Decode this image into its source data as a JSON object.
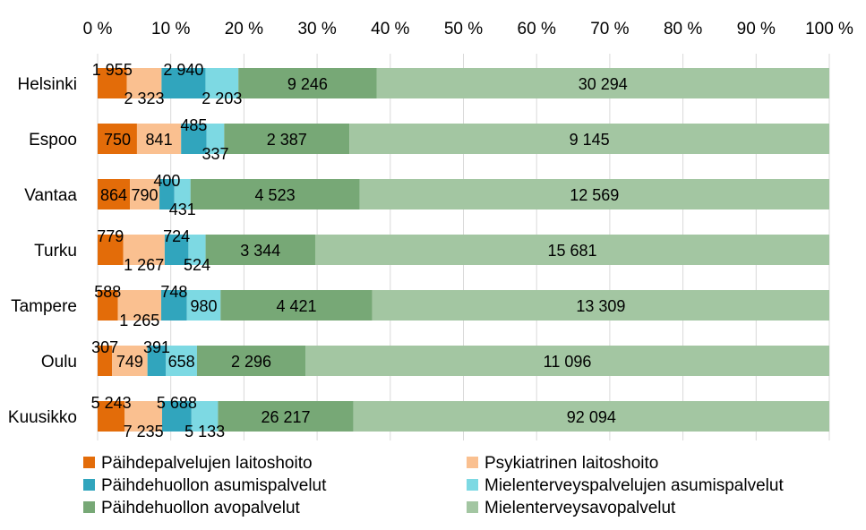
{
  "chart_data": {
    "type": "bar",
    "orientation": "horizontal",
    "stacked": "percent",
    "xlim": [
      0,
      100
    ],
    "x_ticks": [
      "0 %",
      "10 %",
      "20 %",
      "30 %",
      "40 %",
      "50 %",
      "60 %",
      "70 %",
      "80 %",
      "90 %",
      "100 %"
    ],
    "grid": true,
    "legend_position": "bottom",
    "categories": [
      "Helsinki",
      "Espoo",
      "Vantaa",
      "Turku",
      "Tampere",
      "Oulu",
      "Kuusikko"
    ],
    "series": [
      {
        "name": "Päihdepalvelujen laitoshoito",
        "color": "#E36C09",
        "values": [
          1955,
          750,
          864,
          779,
          588,
          307,
          5243
        ],
        "labels": [
          "1 955",
          "750",
          "864",
          "779",
          "588",
          "307",
          "5 243"
        ]
      },
      {
        "name": "Psykiatrinen laitoshoito",
        "color": "#FAC090",
        "values": [
          2323,
          841,
          790,
          1267,
          1265,
          749,
          7235
        ],
        "labels": [
          "2 323",
          "841",
          "790",
          "1 267",
          "1 265",
          "749",
          "7 235"
        ]
      },
      {
        "name": "Päihdehuollon asumispalvelut",
        "color": "#31A5BD",
        "values": [
          2940,
          485,
          400,
          724,
          748,
          391,
          5688
        ],
        "labels": [
          "2 940",
          "485",
          "400",
          "724",
          "748",
          "391",
          "5 688"
        ]
      },
      {
        "name": "Mielenterveyspalvelujen asumispalvelut",
        "color": "#7DD9E3",
        "values": [
          2203,
          337,
          431,
          524,
          980,
          658,
          5133
        ],
        "labels": [
          "2 203",
          "337",
          "431",
          "524",
          "980",
          "658",
          "5 133"
        ]
      },
      {
        "name": "Päihdehuollon avopalvelut",
        "color": "#77A876",
        "values": [
          9246,
          2387,
          4523,
          3344,
          4421,
          2296,
          26217
        ],
        "labels": [
          "9 246",
          "2 387",
          "4 523",
          "3 344",
          "4 421",
          "2 296",
          "26 217"
        ]
      },
      {
        "name": "Mielenterveysavopalvelut",
        "color": "#A3C6A2",
        "values": [
          30294,
          9145,
          12569,
          15681,
          13309,
          11096,
          92094
        ],
        "labels": [
          "30 294",
          "9 145",
          "12 569",
          "15 681",
          "13 309",
          "11 096",
          "92 094"
        ]
      }
    ]
  }
}
